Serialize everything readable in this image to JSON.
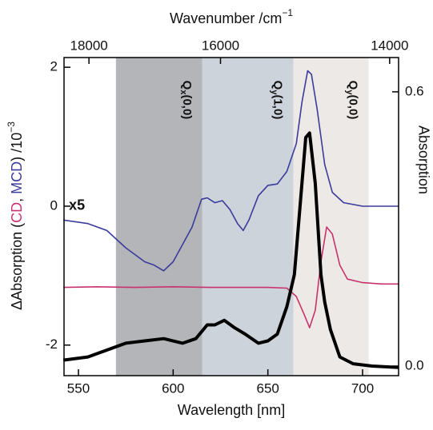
{
  "chart_data": {
    "type": "line",
    "xlabel": "Wavelength [nm]",
    "xlim": [
      542.4,
      719
    ],
    "xticks": [
      550,
      600,
      650,
      700
    ],
    "top_axis": {
      "label": "Wavenumber /cm",
      "label_sup": "−1",
      "ticks": [
        18000,
        16000,
        14000
      ]
    },
    "ylabel_parts": [
      {
        "text": "ΔAbsorption ("
      },
      {
        "text": "CD",
        "color": "#c8326e"
      },
      {
        "text": ", "
      },
      {
        "text": "MCD",
        "color": "#3b3b9c"
      },
      {
        "text": ") /10"
      },
      {
        "text": "−3",
        "sup": true
      }
    ],
    "ylim": [
      -2.44,
      2.14
    ],
    "yticks": [
      -2,
      0,
      2
    ],
    "y2label": "Absorption",
    "y2lim": [
      -0.021,
      0.675
    ],
    "y2ticks": [
      {
        "value": 0,
        "label": "0.0"
      },
      {
        "value": 0.6,
        "label": "0.6"
      }
    ],
    "bands": [
      {
        "range": [
          569.8,
          615.4
        ],
        "color": "#b3b5b8",
        "label": "Q",
        "sub": "x",
        "suffix": "(0,0)"
      },
      {
        "range": [
          615.4,
          663.5
        ],
        "color": "#ccd3da",
        "label": "Q",
        "sub": "y",
        "suffix": "(1,0)"
      },
      {
        "range": [
          663.5,
          703.2
        ],
        "color": "#ece9e6",
        "label": "Q",
        "sub": "y",
        "suffix": "(0,0)"
      }
    ],
    "annotations": [
      {
        "text": "x5",
        "x": 545,
        "y": 0
      }
    ],
    "series": [
      {
        "name": "MCD",
        "color": "#3b3b9c",
        "width": 1.6,
        "x": [
          542,
          555,
          565,
          575,
          585,
          590,
          595,
          600,
          605,
          610,
          615,
          618,
          622,
          626,
          630,
          634,
          637,
          640,
          645,
          650,
          655,
          660,
          665,
          668,
          671,
          673,
          676,
          680,
          684,
          690,
          700,
          710,
          719
        ],
        "values": [
          -0.2,
          -0.25,
          -0.35,
          -0.6,
          -0.8,
          -0.85,
          -0.93,
          -0.8,
          -0.55,
          -0.3,
          0.1,
          0.12,
          0.05,
          0.08,
          -0.05,
          -0.25,
          -0.35,
          -0.2,
          0.15,
          0.3,
          0.32,
          0.5,
          0.9,
          1.5,
          1.95,
          1.9,
          1.4,
          0.6,
          0.2,
          0.05,
          0.0,
          0.0,
          0.0
        ]
      },
      {
        "name": "CD",
        "color": "#c8326e",
        "width": 1.6,
        "x": [
          542,
          560,
          580,
          600,
          620,
          640,
          650,
          660,
          665,
          669,
          672,
          675,
          678,
          681,
          684,
          688,
          692,
          700,
          710,
          719
        ],
        "values": [
          -1.17,
          -1.16,
          -1.17,
          -1.16,
          -1.17,
          -1.17,
          -1.17,
          -1.18,
          -1.3,
          -1.55,
          -1.75,
          -1.5,
          -0.8,
          -0.3,
          -0.4,
          -0.85,
          -1.05,
          -1.1,
          -1.12,
          -1.12
        ]
      },
      {
        "name": "Absorption",
        "color": "#000000",
        "width": 4,
        "axis": "y2",
        "x": [
          542,
          555,
          565,
          575,
          585,
          595,
          605,
          612,
          618,
          622,
          627,
          632,
          638,
          645,
          650,
          655,
          660,
          664,
          667,
          670,
          672,
          675,
          678,
          680,
          683,
          688,
          695,
          705,
          719
        ],
        "values": [
          0.013,
          0.02,
          0.035,
          0.05,
          0.055,
          0.06,
          0.05,
          0.06,
          0.09,
          0.09,
          0.1,
          0.085,
          0.07,
          0.05,
          0.055,
          0.07,
          0.13,
          0.2,
          0.35,
          0.5,
          0.51,
          0.4,
          0.2,
          0.14,
          0.08,
          0.02,
          0.005,
          0.0,
          -0.003
        ]
      }
    ]
  }
}
